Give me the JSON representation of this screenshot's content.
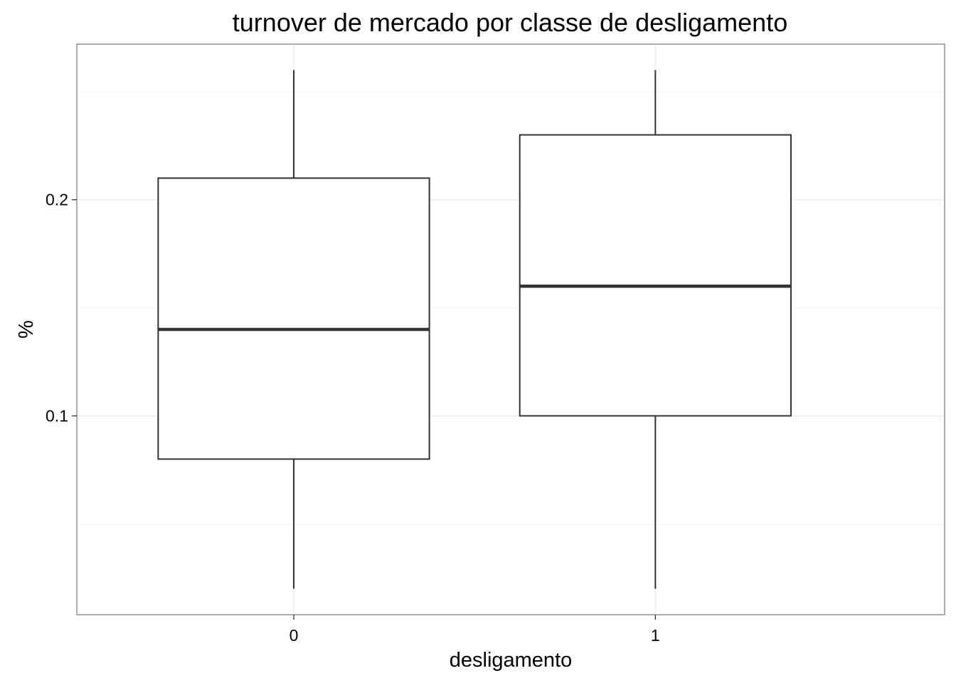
{
  "chart_data": {
    "type": "boxplot",
    "title": "turnover de mercado por classe de desligamento",
    "xlabel": "desligamento",
    "ylabel": "%",
    "categories": [
      "0",
      "1"
    ],
    "boxes": [
      {
        "category": "0",
        "min": 0.02,
        "q1": 0.08,
        "median": 0.14,
        "q3": 0.21,
        "max": 0.26
      },
      {
        "category": "1",
        "min": 0.02,
        "q1": 0.1,
        "median": 0.16,
        "q3": 0.23,
        "max": 0.26
      }
    ],
    "y_ticks": [
      0.1,
      0.2
    ],
    "y_tick_labels": [
      "0.1",
      "0.2"
    ],
    "y_minor_ticks": [
      0.05,
      0.15,
      0.25
    ],
    "ylim": [
      0.008,
      0.272
    ],
    "grid": true,
    "legend": "none"
  }
}
